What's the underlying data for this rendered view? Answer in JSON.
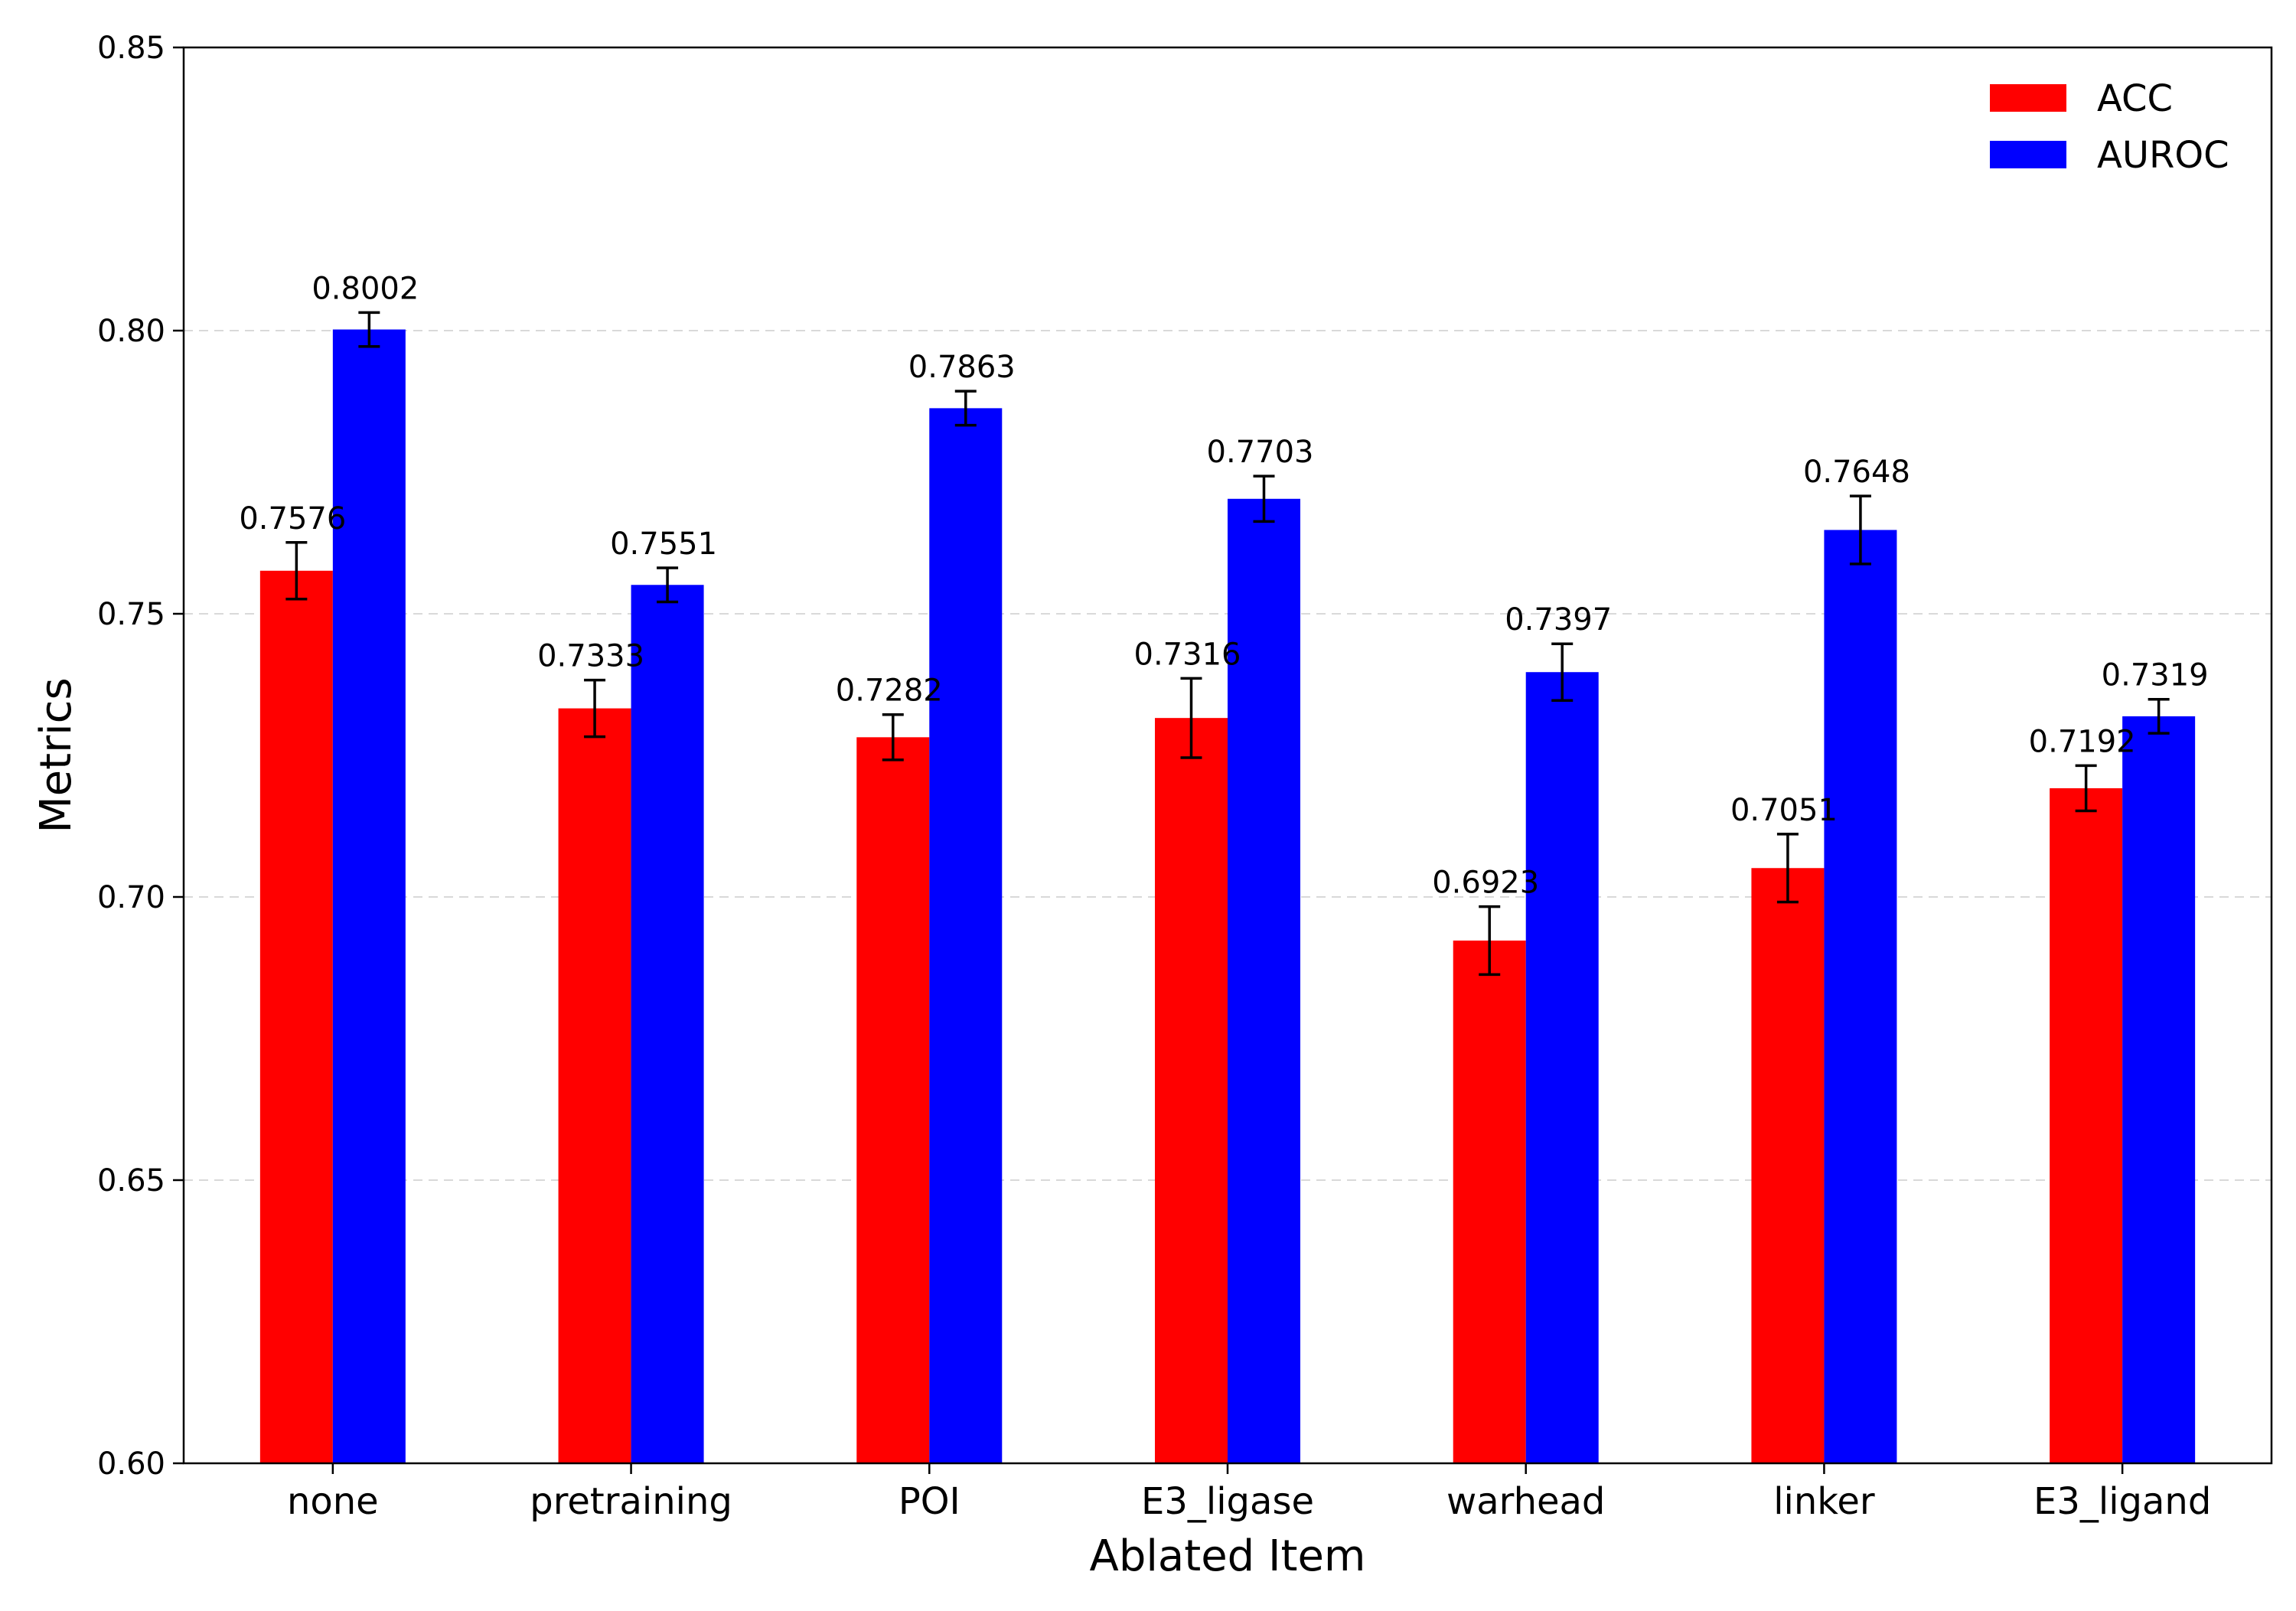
{
  "chart_data": {
    "type": "bar",
    "xlabel": "Ablated Item",
    "ylabel": "Metrics",
    "ylim": [
      0.6,
      0.85
    ],
    "yticks": [
      "0.60",
      "0.65",
      "0.70",
      "0.75",
      "0.80",
      "0.85"
    ],
    "grid": "horizontal dashed",
    "legend_position": "top-right",
    "categories": [
      "none",
      "pretraining",
      "POI",
      "E3_ligase",
      "warhead",
      "linker",
      "E3_ligand"
    ],
    "series": [
      {
        "name": "ACC",
        "color": "#ff0000",
        "values": [
          0.7576,
          0.7333,
          0.7282,
          0.7316,
          0.6923,
          0.7051,
          0.7192
        ],
        "labels": [
          "0.7576",
          "0.7333",
          "0.7282",
          "0.7316",
          "0.6923",
          "0.7051",
          "0.7192"
        ],
        "errors": [
          0.005,
          0.005,
          0.004,
          0.007,
          0.006,
          0.006,
          0.004
        ]
      },
      {
        "name": "AUROC",
        "color": "#0000ff",
        "values": [
          0.8002,
          0.7551,
          0.7863,
          0.7703,
          0.7397,
          0.7648,
          0.7319
        ],
        "labels": [
          "0.8002",
          "0.7551",
          "0.7863",
          "0.7703",
          "0.7397",
          "0.7648",
          "0.7319"
        ],
        "errors": [
          0.003,
          0.003,
          0.003,
          0.004,
          0.005,
          0.006,
          0.003
        ]
      }
    ]
  }
}
